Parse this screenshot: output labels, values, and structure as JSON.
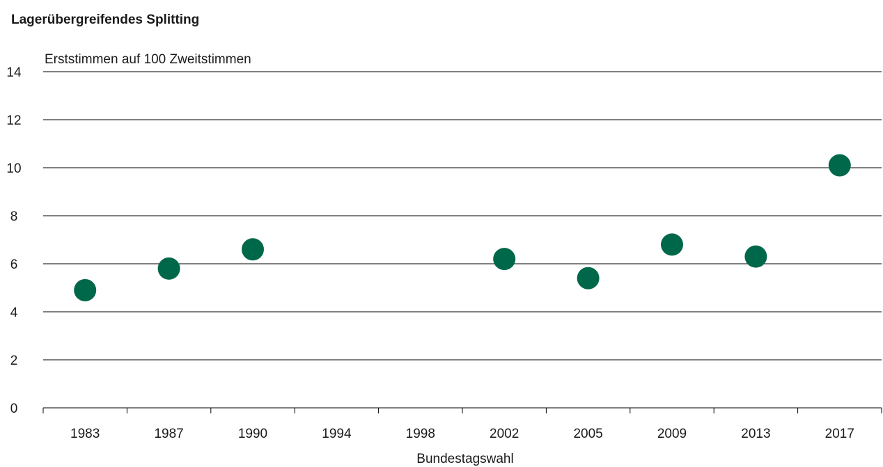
{
  "chart_data": {
    "type": "scatter",
    "title": "Lagerübergreifendes Splitting",
    "ylabel": "Erststimmen auf 100 Zweitstimmen",
    "xlabel": "Bundestagswahl",
    "categories": [
      "1983",
      "1987",
      "1990",
      "1994",
      "1998",
      "2002",
      "2005",
      "2009",
      "2013",
      "2017"
    ],
    "values": [
      4.9,
      5.8,
      6.6,
      null,
      null,
      6.2,
      5.4,
      6.8,
      6.3,
      10.1
    ],
    "ylim": [
      0,
      14
    ],
    "yticks": [
      "0",
      "2",
      "4",
      "6",
      "8",
      "10",
      "12",
      "14"
    ],
    "grid": true,
    "colors": {
      "marker": "#00684A",
      "grid": "#000000"
    }
  }
}
